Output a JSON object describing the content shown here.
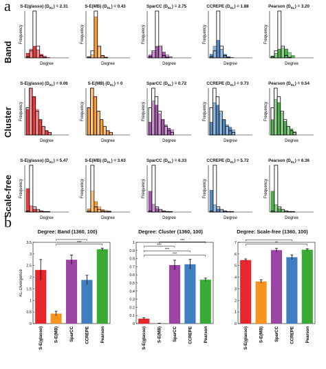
{
  "panels": {
    "a": "a",
    "b": "b"
  },
  "row_labels": [
    "Band",
    "Cluster",
    "Scale-free"
  ],
  "hist_axes": {
    "xlabel": "Degree",
    "ylabel": "Frequency"
  },
  "method_colors": {
    "S-E(glasso)": "#e8262b",
    "S-E(MB)": "#f7931e",
    "SparCC": "#9b44a4",
    "CCREPE": "#3f7fbf",
    "Pearson": "#3aaa35"
  },
  "chart_data": [
    {
      "type": "bar",
      "title": "Degree: Band (1360, 100)",
      "ylabel": "KL-Divergence",
      "categories": [
        "S-E(glasso)",
        "S-E(MB)",
        "SparCC",
        "CCREPE",
        "Pearson"
      ],
      "values": [
        2.31,
        0.43,
        2.75,
        1.88,
        3.2
      ],
      "errors": [
        0.45,
        0.1,
        0.2,
        0.2,
        0.05
      ],
      "ylim": [
        0,
        3.5
      ],
      "yticks": [
        0,
        0.5,
        1,
        1.5,
        2,
        2.5,
        3,
        3.5
      ],
      "significance": [
        "***",
        "***",
        "***"
      ]
    },
    {
      "type": "bar",
      "title": "Degree: Cluster (1360, 100)",
      "ylabel": "",
      "categories": [
        "S-E(glasso)",
        "S-E(MB)",
        "SparCC",
        "CCREPE",
        "Pearson"
      ],
      "values": [
        0.06,
        0,
        0.72,
        0.73,
        0.54
      ],
      "errors": [
        0.01,
        0.005,
        0.06,
        0.06,
        0.02
      ],
      "ylim": [
        0,
        1
      ],
      "yticks": [
        0,
        0.1,
        0.2,
        0.3,
        0.4,
        0.5,
        0.6,
        0.7,
        0.8,
        0.9,
        1
      ],
      "significance": [
        "***",
        "***",
        "***",
        "***",
        "***",
        "***"
      ]
    },
    {
      "type": "bar",
      "title": "Degree: Scale-free (1360, 100)",
      "ylabel": "",
      "categories": [
        "S-E(glasso)",
        "S-E(MB)",
        "SparCC",
        "CCREPE",
        "Pearson"
      ],
      "values": [
        5.47,
        3.63,
        6.33,
        5.72,
        6.36
      ],
      "errors": [
        0.1,
        0.15,
        0.15,
        0.2,
        0.08
      ],
      "ylim": [
        0,
        7
      ],
      "yticks": [
        0,
        1,
        2,
        3,
        4,
        5,
        6,
        7
      ],
      "significance": [
        "**",
        "***",
        "**",
        "***",
        "***",
        "***"
      ]
    },
    {
      "type": "bar",
      "description_rows": [
        "Band",
        "Cluster",
        "Scale-free"
      ],
      "histograms": [
        [
          {
            "title": "S-E(glasso) (D",
            "kl": "KL",
            "value": ") = 2.31",
            "method": "S-E(glasso)",
            "observed": [
              8,
              15,
              20,
              14,
              6,
              3,
              1
            ],
            "reference": [
              2,
              12,
              80,
              20,
              4,
              1,
              0
            ]
          },
          {
            "title": "S-E(MB) (D",
            "kl": "KL",
            "value": ") = 0.43",
            "method": "S-E(MB)",
            "observed": [
              1,
              5,
              70,
              18,
              3,
              1,
              0
            ],
            "reference": [
              2,
              12,
              80,
              20,
              4,
              1,
              0
            ]
          },
          {
            "title": "SparCC (D",
            "kl": "KL",
            "value": ") = 2.75",
            "method": "SparCC",
            "observed": [
              5,
              10,
              20,
              18,
              10,
              5,
              2
            ],
            "reference": [
              2,
              12,
              80,
              20,
              4,
              1,
              0
            ]
          },
          {
            "title": "CCREPE (D",
            "kl": "KL",
            "value": ") = 1.88",
            "method": "CCREPE",
            "observed": [
              6,
              20,
              30,
              15,
              6,
              2,
              1
            ],
            "reference": [
              2,
              12,
              80,
              20,
              4,
              1,
              0
            ]
          },
          {
            "title": "Pearson (D",
            "kl": "KL",
            "value": ") = 3.20",
            "method": "Pearson",
            "observed": [
              3,
              8,
              15,
              17,
              15,
              9,
              4
            ],
            "reference": [
              2,
              12,
              80,
              20,
              4,
              1,
              0
            ]
          }
        ],
        [
          {
            "title": "S-E(glasso) (D",
            "kl": "KL",
            "value": ") = 0.06",
            "method": "S-E(glasso)",
            "observed": [
              30,
              55,
              45,
              30,
              18,
              10,
              5,
              3
            ],
            "reference": [
              32,
              55,
              45,
              28,
              18,
              10,
              5,
              3
            ]
          },
          {
            "title": "S-E(MB) (D",
            "kl": "KL",
            "value": ") = 0",
            "method": "S-E(MB)",
            "observed": [
              32,
              55,
              45,
              28,
              18,
              10,
              5,
              3
            ],
            "reference": [
              32,
              55,
              45,
              28,
              18,
              10,
              5,
              3
            ]
          },
          {
            "title": "SparCC (D",
            "kl": "KL",
            "value": ") = 0.72",
            "method": "SparCC",
            "observed": [
              15,
              40,
              35,
              25,
              18,
              12,
              8,
              6
            ],
            "reference": [
              32,
              55,
              45,
              28,
              18,
              10,
              5,
              3
            ]
          },
          {
            "title": "CCREPE (D",
            "kl": "KL",
            "value": ") = 0.73",
            "method": "CCREPE",
            "observed": [
              15,
              38,
              35,
              26,
              18,
              12,
              9,
              6
            ],
            "reference": [
              32,
              55,
              45,
              28,
              18,
              10,
              5,
              3
            ]
          },
          {
            "title": "Pearson (D",
            "kl": "KL",
            "value": ") = 0.54",
            "method": "Pearson",
            "observed": [
              18,
              42,
              38,
              26,
              16,
              10,
              7,
              4
            ],
            "reference": [
              32,
              55,
              45,
              28,
              18,
              10,
              5,
              3
            ]
          }
        ],
        [
          {
            "title": "S-E(glasso) (D",
            "kl": "KL",
            "value": ") = 5.47",
            "method": "S-E(glasso)",
            "observed": [
              45,
              12,
              6,
              3,
              2,
              1,
              1
            ],
            "reference": [
              2,
              90,
              10,
              5,
              2,
              1,
              1
            ]
          },
          {
            "title": "S-E(MB) (D",
            "kl": "KL",
            "value": ") = 3.63",
            "method": "S-E(MB)",
            "observed": [
              6,
              40,
              20,
              10,
              5,
              3,
              2
            ],
            "reference": [
              2,
              90,
              10,
              5,
              2,
              1,
              1
            ]
          },
          {
            "title": "SparCC (D",
            "kl": "KL",
            "value": ") = 6.33",
            "method": "SparCC",
            "observed": [
              40,
              15,
              7,
              3,
              2,
              1,
              1
            ],
            "reference": [
              2,
              90,
              10,
              5,
              2,
              1,
              1
            ]
          },
          {
            "title": "CCREPE (D",
            "kl": "KL",
            "value": ") = 5.72",
            "method": "CCREPE",
            "observed": [
              42,
              14,
              6,
              3,
              2,
              1,
              1
            ],
            "reference": [
              2,
              90,
              10,
              5,
              2,
              1,
              1
            ]
          },
          {
            "title": "Pearson (D",
            "kl": "KL",
            "value": ") = 6.36",
            "method": "Pearson",
            "observed": [
              40,
              14,
              7,
              3,
              2,
              1,
              1
            ],
            "reference": [
              2,
              90,
              10,
              5,
              2,
              1,
              1
            ]
          }
        ]
      ]
    }
  ]
}
